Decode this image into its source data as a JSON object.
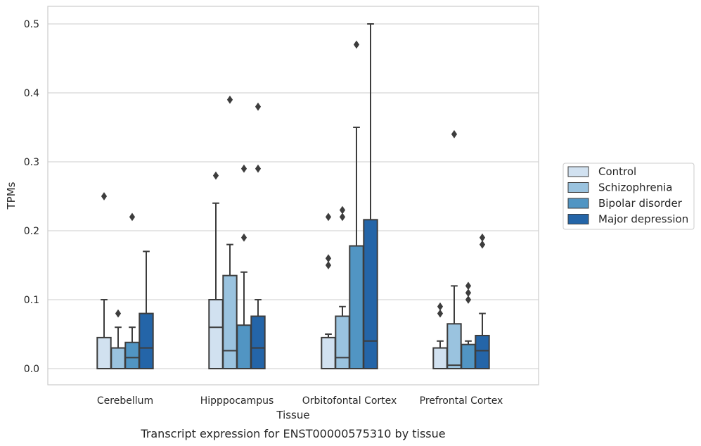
{
  "caption": "Transcript expression for ENST00000575310 by tissue",
  "chart_data": {
    "type": "box",
    "xlabel": "Tissue",
    "ylabel": "TPMs",
    "ylim": [
      -0.025,
      0.525
    ],
    "yticks": [
      0.0,
      0.1,
      0.2,
      0.3,
      0.4,
      0.5
    ],
    "ytick_labels": [
      "0.0",
      "0.1",
      "0.2",
      "0.3",
      "0.4",
      "0.5"
    ],
    "grid": "horizontal",
    "legend_position": "right-center",
    "categories": [
      "Cerebellum",
      "Hipppocampus",
      "Orbitofontal Cortex",
      "Prefrontal Cortex"
    ],
    "series": [
      {
        "name": "Control",
        "color": "#d1e1f0",
        "boxes": [
          {
            "q1": 0.0,
            "median": 0.0,
            "q3": 0.045,
            "whisker_low": 0.0,
            "whisker_high": 0.1,
            "outliers": [
              0.25
            ]
          },
          {
            "q1": 0.0,
            "median": 0.06,
            "q3": 0.1,
            "whisker_low": 0.0,
            "whisker_high": 0.24,
            "outliers": [
              0.28
            ]
          },
          {
            "q1": 0.0,
            "median": 0.0,
            "q3": 0.045,
            "whisker_low": 0.0,
            "whisker_high": 0.05,
            "outliers": [
              0.15,
              0.16,
              0.22
            ]
          },
          {
            "q1": 0.0,
            "median": 0.0,
            "q3": 0.03,
            "whisker_low": 0.0,
            "whisker_high": 0.04,
            "outliers": [
              0.08,
              0.09
            ]
          }
        ]
      },
      {
        "name": "Schizophrenia",
        "color": "#9ac3df",
        "boxes": [
          {
            "q1": 0.0,
            "median": 0.0,
            "q3": 0.03,
            "whisker_low": 0.0,
            "whisker_high": 0.06,
            "outliers": [
              0.08
            ]
          },
          {
            "q1": 0.0,
            "median": 0.026,
            "q3": 0.135,
            "whisker_low": 0.0,
            "whisker_high": 0.18,
            "outliers": [
              0.39
            ]
          },
          {
            "q1": 0.0,
            "median": 0.016,
            "q3": 0.076,
            "whisker_low": 0.0,
            "whisker_high": 0.09,
            "outliers": [
              0.22,
              0.23
            ]
          },
          {
            "q1": 0.0,
            "median": 0.005,
            "q3": 0.065,
            "whisker_low": 0.0,
            "whisker_high": 0.12,
            "outliers": [
              0.34
            ]
          }
        ]
      },
      {
        "name": "Bipolar disorder",
        "color": "#5195c3",
        "boxes": [
          {
            "q1": 0.0,
            "median": 0.016,
            "q3": 0.038,
            "whisker_low": 0.0,
            "whisker_high": 0.06,
            "outliers": [
              0.22
            ]
          },
          {
            "q1": 0.0,
            "median": 0.0,
            "q3": 0.063,
            "whisker_low": 0.0,
            "whisker_high": 0.14,
            "outliers": [
              0.19,
              0.29
            ]
          },
          {
            "q1": 0.0,
            "median": 0.0,
            "q3": 0.178,
            "whisker_low": 0.0,
            "whisker_high": 0.35,
            "outliers": [
              0.47
            ]
          },
          {
            "q1": 0.0,
            "median": 0.0,
            "q3": 0.035,
            "whisker_low": 0.0,
            "whisker_high": 0.04,
            "outliers": [
              0.1,
              0.11,
              0.12
            ]
          }
        ]
      },
      {
        "name": "Major depression",
        "color": "#2465a8",
        "boxes": [
          {
            "q1": 0.0,
            "median": 0.03,
            "q3": 0.08,
            "whisker_low": 0.0,
            "whisker_high": 0.17,
            "outliers": []
          },
          {
            "q1": 0.0,
            "median": 0.03,
            "q3": 0.076,
            "whisker_low": 0.0,
            "whisker_high": 0.1,
            "outliers": [
              0.29,
              0.38
            ]
          },
          {
            "q1": 0.0,
            "median": 0.04,
            "q3": 0.216,
            "whisker_low": 0.0,
            "whisker_high": 0.5,
            "outliers": []
          },
          {
            "q1": 0.0,
            "median": 0.026,
            "q3": 0.048,
            "whisker_low": 0.0,
            "whisker_high": 0.08,
            "outliers": [
              0.18,
              0.19
            ]
          }
        ]
      }
    ]
  }
}
